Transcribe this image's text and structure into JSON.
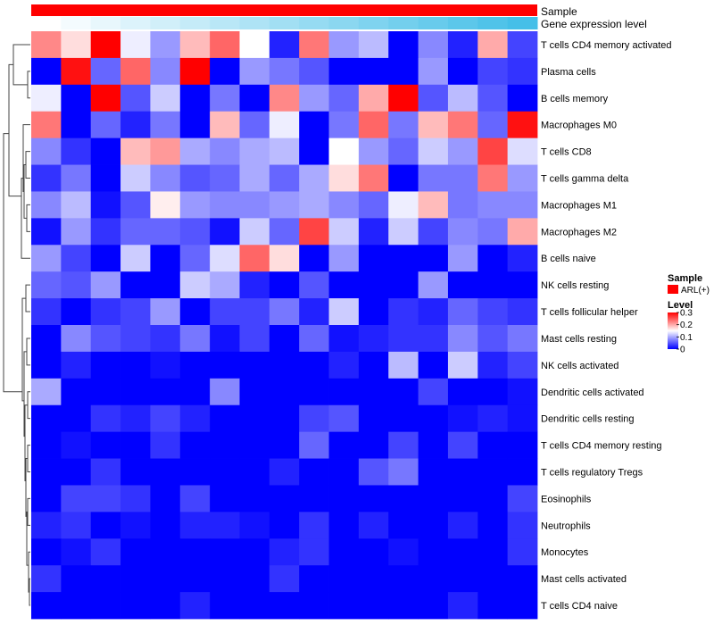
{
  "chart_data": {
    "type": "heatmap",
    "title": "",
    "columns": 17,
    "annotations": {
      "sample_label": "Sample",
      "gene_label": "Gene expression level",
      "sample_color": "#ff0000",
      "gene_colors": [
        "#ffffff",
        "#f4fbfe",
        "#e8f7fc",
        "#dcf3fb",
        "#d1eff9",
        "#c5ebf8",
        "#b9e7f6",
        "#aee3f5",
        "#a2dff3",
        "#96dbf2",
        "#8bd7f0",
        "#7fd3ef",
        "#73cfed",
        "#68cbec",
        "#5cc7ea",
        "#50c3e9",
        "#45bfe8"
      ]
    },
    "color_scale": {
      "low": "#0000ff",
      "mid": "#ffffff",
      "high": "#ff0000",
      "min": 0,
      "max": 0.3
    },
    "rows": [
      {
        "label": "T cells CD4 memory activated",
        "values": [
          0.22,
          0.17,
          0.3,
          0.14,
          0.09,
          0.19,
          0.24,
          0.15,
          0.02,
          0.23,
          0.09,
          0.11,
          0.0,
          0.08,
          0.02,
          0.2,
          0.04
        ]
      },
      {
        "label": "Plasma cells",
        "values": [
          0.0,
          0.29,
          0.06,
          0.24,
          0.08,
          0.3,
          0.0,
          0.09,
          0.07,
          0.05,
          0.0,
          0.0,
          0.0,
          0.09,
          0.0,
          0.04,
          0.03
        ]
      },
      {
        "label": "B cells memory",
        "values": [
          0.14,
          0.0,
          0.3,
          0.05,
          0.12,
          0.0,
          0.07,
          0.0,
          0.22,
          0.09,
          0.06,
          0.2,
          0.3,
          0.05,
          0.11,
          0.05,
          0.0
        ]
      },
      {
        "label": "Macrophages M0",
        "values": [
          0.23,
          0.0,
          0.06,
          0.02,
          0.07,
          0.0,
          0.19,
          0.06,
          0.14,
          0.0,
          0.07,
          0.24,
          0.07,
          0.19,
          0.23,
          0.06,
          0.29
        ]
      },
      {
        "label": "T cells CD8",
        "values": [
          0.08,
          0.03,
          0.0,
          0.19,
          0.21,
          0.1,
          0.08,
          0.1,
          0.11,
          0.0,
          0.15,
          0.09,
          0.06,
          0.12,
          0.09,
          0.26,
          0.13
        ]
      },
      {
        "label": "T cells gamma delta",
        "values": [
          0.03,
          0.07,
          0.0,
          0.12,
          0.08,
          0.05,
          0.06,
          0.1,
          0.06,
          0.1,
          0.17,
          0.23,
          0.0,
          0.07,
          0.07,
          0.23,
          0.09
        ]
      },
      {
        "label": "Macrophages M1",
        "values": [
          0.08,
          0.11,
          0.01,
          0.05,
          0.16,
          0.09,
          0.08,
          0.08,
          0.09,
          0.1,
          0.08,
          0.06,
          0.14,
          0.19,
          0.07,
          0.08,
          0.08
        ]
      },
      {
        "label": "Macrophages M2",
        "values": [
          0.01,
          0.09,
          0.03,
          0.06,
          0.06,
          0.05,
          0.01,
          0.12,
          0.06,
          0.26,
          0.12,
          0.02,
          0.12,
          0.04,
          0.08,
          0.07,
          0.2
        ]
      },
      {
        "label": "B cells naive",
        "values": [
          0.09,
          0.04,
          0.0,
          0.12,
          0.0,
          0.06,
          0.13,
          0.24,
          0.17,
          0.0,
          0.09,
          0.0,
          0.0,
          0.0,
          0.09,
          0.0,
          0.02
        ]
      },
      {
        "label": "NK cells resting",
        "values": [
          0.06,
          0.05,
          0.09,
          0.0,
          0.0,
          0.12,
          0.1,
          0.02,
          0.0,
          0.05,
          0.0,
          0.0,
          0.0,
          0.09,
          0.0,
          0.0,
          0.0
        ]
      },
      {
        "label": "T cells follicular helper",
        "values": [
          0.03,
          0.0,
          0.03,
          0.04,
          0.09,
          0.0,
          0.04,
          0.04,
          0.07,
          0.02,
          0.12,
          0.0,
          0.03,
          0.02,
          0.06,
          0.04,
          0.03
        ]
      },
      {
        "label": "Mast cells resting",
        "values": [
          0.0,
          0.08,
          0.05,
          0.04,
          0.03,
          0.07,
          0.01,
          0.04,
          0.0,
          0.06,
          0.01,
          0.02,
          0.03,
          0.03,
          0.08,
          0.05,
          0.07
        ]
      },
      {
        "label": "NK cells activated",
        "values": [
          0.0,
          0.02,
          0.0,
          0.0,
          0.01,
          0.0,
          0.0,
          0.0,
          0.0,
          0.0,
          0.02,
          0.0,
          0.11,
          0.0,
          0.12,
          0.02,
          0.04
        ]
      },
      {
        "label": "Dendritic cells activated",
        "values": [
          0.1,
          0.0,
          0.0,
          0.0,
          0.0,
          0.0,
          0.08,
          0.0,
          0.0,
          0.0,
          0.0,
          0.0,
          0.0,
          0.04,
          0.0,
          0.0,
          0.01
        ]
      },
      {
        "label": "Dendritic cells resting",
        "values": [
          0.0,
          0.0,
          0.03,
          0.02,
          0.04,
          0.02,
          0.0,
          0.0,
          0.0,
          0.04,
          0.05,
          0.0,
          0.0,
          0.0,
          0.01,
          0.02,
          0.01
        ]
      },
      {
        "label": "T cells CD4 memory resting",
        "values": [
          0.0,
          0.01,
          0.0,
          0.0,
          0.03,
          0.0,
          0.0,
          0.0,
          0.0,
          0.06,
          0.0,
          0.0,
          0.04,
          0.0,
          0.04,
          0.0,
          0.0
        ]
      },
      {
        "label": "T cells regulatory  Tregs",
        "values": [
          0.0,
          0.0,
          0.03,
          0.0,
          0.0,
          0.0,
          0.0,
          0.0,
          0.02,
          0.0,
          0.0,
          0.05,
          0.07,
          0.0,
          0.0,
          0.0,
          0.0
        ]
      },
      {
        "label": "Eosinophils",
        "values": [
          0.0,
          0.04,
          0.04,
          0.03,
          0.0,
          0.04,
          0.0,
          0.0,
          0.0,
          0.0,
          0.0,
          0.0,
          0.0,
          0.0,
          0.0,
          0.0,
          0.04
        ]
      },
      {
        "label": "Neutrophils",
        "values": [
          0.02,
          0.03,
          0.0,
          0.01,
          0.0,
          0.02,
          0.02,
          0.01,
          0.0,
          0.03,
          0.0,
          0.02,
          0.0,
          0.0,
          0.02,
          0.0,
          0.03
        ]
      },
      {
        "label": "Monocytes",
        "values": [
          0.0,
          0.01,
          0.03,
          0.0,
          0.0,
          0.0,
          0.0,
          0.0,
          0.02,
          0.03,
          0.0,
          0.0,
          0.01,
          0.0,
          0.0,
          0.0,
          0.03
        ]
      },
      {
        "label": "Mast cells activated",
        "values": [
          0.03,
          0.0,
          0.0,
          0.0,
          0.0,
          0.0,
          0.0,
          0.0,
          0.03,
          0.0,
          0.0,
          0.0,
          0.0,
          0.0,
          0.0,
          0.0,
          0.0
        ]
      },
      {
        "label": "T cells CD4 naive",
        "values": [
          0.0,
          0.0,
          0.0,
          0.0,
          0.0,
          0.02,
          0.0,
          0.0,
          0.0,
          0.0,
          0.0,
          0.0,
          0.0,
          0.0,
          0.02,
          0.0,
          0.0
        ]
      }
    ],
    "legend": {
      "sample_title": "Sample",
      "sample_entry": "ARL(+)",
      "level_title": "Level",
      "ticks": [
        "0.3",
        "0.2",
        "0.1",
        "0"
      ],
      "tick_values": [
        0.3,
        0.2,
        0.1,
        0
      ]
    }
  }
}
